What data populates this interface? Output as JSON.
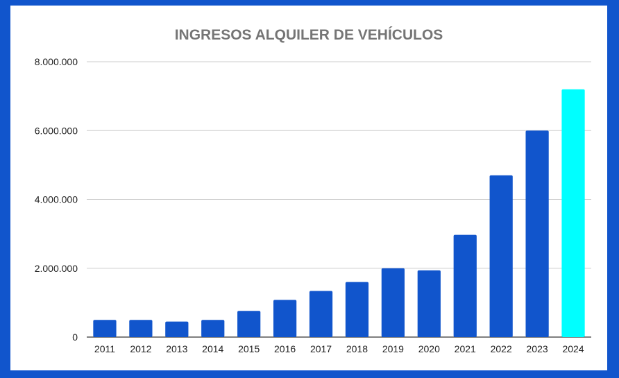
{
  "colors": {
    "background": "#1155cc",
    "panel": "#ffffff",
    "bar": "#1155cc",
    "highlight_bar": "#00ffff",
    "gridline": "#cccccc",
    "title": "#757575"
  },
  "chart_data": {
    "type": "bar",
    "title": "INGRESOS ALQUILER DE VEHÍCULOS",
    "xlabel": "",
    "ylabel": "",
    "categories": [
      "2011",
      "2012",
      "2013",
      "2014",
      "2015",
      "2016",
      "2017",
      "2018",
      "2019",
      "2020",
      "2021",
      "2022",
      "2023",
      "2024"
    ],
    "values": [
      500000,
      500000,
      450000,
      500000,
      760000,
      1080000,
      1340000,
      1600000,
      2000000,
      1940000,
      2970000,
      4700000,
      6000000,
      7200000
    ],
    "highlight": [
      "2024"
    ],
    "ylim": [
      0,
      8000000
    ],
    "yticks": [
      0,
      2000000,
      4000000,
      6000000,
      8000000
    ],
    "ytick_labels": [
      "0",
      "2.000.000",
      "4.000.000",
      "6.000.000",
      "8.000.000"
    ],
    "grid": true,
    "legend": "none"
  }
}
